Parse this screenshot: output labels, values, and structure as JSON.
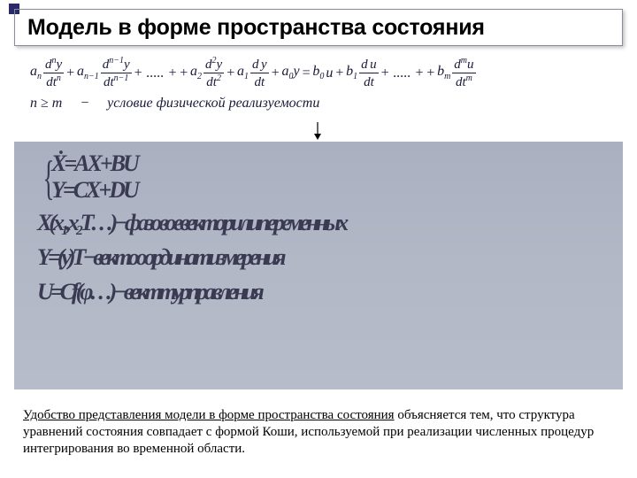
{
  "title": "Модель в форме пространства состояния",
  "equation": {
    "terms": [
      {
        "coef": "a",
        "coef_sub": "n",
        "num": "d",
        "num_sup": "n",
        "numv": "y",
        "den": "dt",
        "den_sup": "n"
      },
      {
        "coef": "a",
        "coef_sub": "n−1",
        "num": "d",
        "num_sup": "n−1",
        "numv": "y",
        "den": "dt",
        "den_sup": "n−1"
      },
      {
        "dots": "+ ..... +"
      },
      {
        "coef": "a",
        "coef_sub": "2",
        "num": "d",
        "num_sup": "2",
        "numv": "y",
        "den": "dt",
        "den_sup": "2"
      },
      {
        "coef": "a",
        "coef_sub": "1",
        "num": "d",
        "num_sup": " ",
        "numv": "y",
        "den": "dt",
        "den_sup": ""
      },
      {
        "plain_l": "a",
        "plain_sub": "0",
        "plain_r": "y"
      },
      {
        "eq": "="
      },
      {
        "coef": "b",
        "coef_sub": "0",
        "plain_r": "u",
        "noplus": true
      },
      {
        "coef": "b",
        "coef_sub": "1",
        "num": "d",
        "num_sup": " ",
        "numv": "u",
        "den": "dt",
        "den_sup": ""
      },
      {
        "dots": "+ ..... +"
      },
      {
        "coef": "b",
        "coef_sub": "m",
        "num": "d",
        "num_sup": "m",
        "numv": "u",
        "den": "dt",
        "den_sup": "m"
      }
    ],
    "condition_lhs": "n ≥ m",
    "condition_dash": "−",
    "condition_text": "условие   физической   реализуемости"
  },
  "state": {
    "line1": "Ẋ=AX+BU",
    "line2": "Y=CX+DU",
    "vec1": "X(x₁,x₂T…)−фазовоевекторилипеременных",
    "vec2": "Y=(y)T−вектооординатизмерения",
    "vec3": "U=Cf(φ…)−векттурправления"
  },
  "bottom": {
    "p1a": "Удобство представления модели в форме пространства состояния",
    "p1b": " объясняется тем, что структура уравнений состояния совпадает с формой Коши, используемой при реализации численных процедур интегрирования во временной области."
  },
  "colors": {
    "corner": "#2a2a6a",
    "gray_bg": "#b2b8c6",
    "eq_text": "#1a1a3a",
    "state_text": "#3a3a52"
  }
}
